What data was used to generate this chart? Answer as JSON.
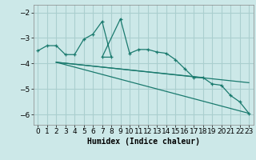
{
  "xlabel": "Humidex (Indice chaleur)",
  "bg_color": "#cce8e8",
  "grid_color": "#aacfcf",
  "line_color": "#1a7a6e",
  "xlim": [
    -0.5,
    23.5
  ],
  "ylim": [
    -6.4,
    -1.7
  ],
  "yticks": [
    -6,
    -5,
    -4,
    -3,
    -2
  ],
  "xticks": [
    0,
    1,
    2,
    3,
    4,
    5,
    6,
    7,
    8,
    9,
    10,
    11,
    12,
    13,
    14,
    15,
    16,
    17,
    18,
    19,
    20,
    21,
    22,
    23
  ],
  "curve_x": [
    0,
    1,
    2,
    3,
    4,
    5,
    6,
    7,
    8,
    7,
    9,
    10,
    11,
    12,
    13,
    14,
    15,
    16,
    17,
    18,
    19,
    20,
    21,
    22,
    23
  ],
  "curve_y": [
    -3.5,
    -3.3,
    -3.3,
    -3.65,
    -3.65,
    -3.05,
    -2.85,
    -2.35,
    -3.75,
    -3.75,
    -2.25,
    -3.6,
    -3.45,
    -3.45,
    -3.55,
    -3.6,
    -3.85,
    -4.2,
    -4.55,
    -4.55,
    -4.8,
    -4.85,
    -5.25,
    -5.5,
    -5.95
  ],
  "straight_lines": [
    {
      "x": [
        2,
        23
      ],
      "y": [
        -3.95,
        -5.95
      ]
    },
    {
      "x": [
        2,
        23
      ],
      "y": [
        -3.95,
        -4.75
      ]
    },
    {
      "x": [
        2,
        18
      ],
      "y": [
        -3.95,
        -4.55
      ]
    }
  ],
  "tick_fontsize": 6.5,
  "xlabel_fontsize": 7.0
}
